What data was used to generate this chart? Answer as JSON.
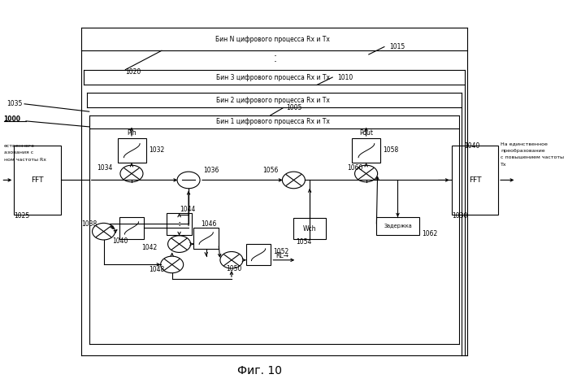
{
  "title": "Фиг. 10",
  "bg_color": "#ffffff",
  "bin_labels": [
    "Бин N цифрового процесса Rx и Tx",
    "Бин 3 цифрового процесса Rx и Tx",
    "Бин 2 цифрового процесса Rx и Tx",
    "Бин 1 цифрового процесса Rx и Tx"
  ],
  "left_text": [
    "ественного",
    "азования с",
    "ном частоты Rx"
  ],
  "right_text": [
    "На единственное",
    "преобразование",
    "с повышением частоты",
    "Тх"
  ],
  "lw": 0.8,
  "fs": 6.5,
  "fss": 5.5
}
